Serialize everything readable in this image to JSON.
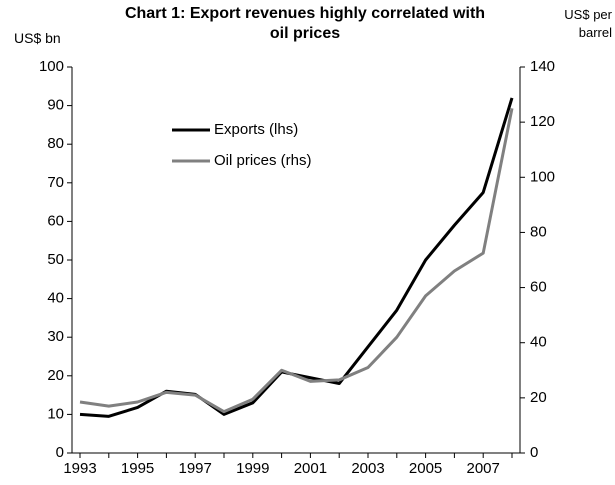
{
  "chart_data": {
    "type": "line",
    "title": "Chart 1: Export revenues highly correlated with oil prices",
    "y_label": "US$ bn",
    "y2_label": "US$ per barrel",
    "categories": [
      "1993",
      null,
      "1995",
      null,
      "1997",
      null,
      "1999",
      null,
      "2001",
      null,
      "2003",
      null,
      "2005",
      null,
      "2007",
      null
    ],
    "series": [
      {
        "name": "Exports (lhs)",
        "color": "#000000",
        "values": [
          10,
          9.5,
          11.8,
          16,
          15.2,
          10,
          13,
          21,
          19.5,
          18,
          27.5,
          37,
          50,
          59,
          67.5,
          92
        ]
      },
      {
        "name": "Oil prices (rhs)",
        "color": "#808080",
        "axis": "y2",
        "values": [
          18.5,
          17,
          18.5,
          22,
          21,
          15,
          19.5,
          30,
          26,
          26.5,
          31,
          42,
          57,
          66,
          72.5,
          125
        ]
      }
    ],
    "ylim": [
      0,
      100
    ],
    "yticks": [
      0,
      10,
      20,
      30,
      40,
      50,
      60,
      70,
      80,
      90,
      100
    ],
    "y2lim": [
      0,
      140
    ],
    "y2ticks": [
      0,
      20,
      40,
      60,
      80,
      100,
      120,
      140
    ],
    "grid": false
  }
}
